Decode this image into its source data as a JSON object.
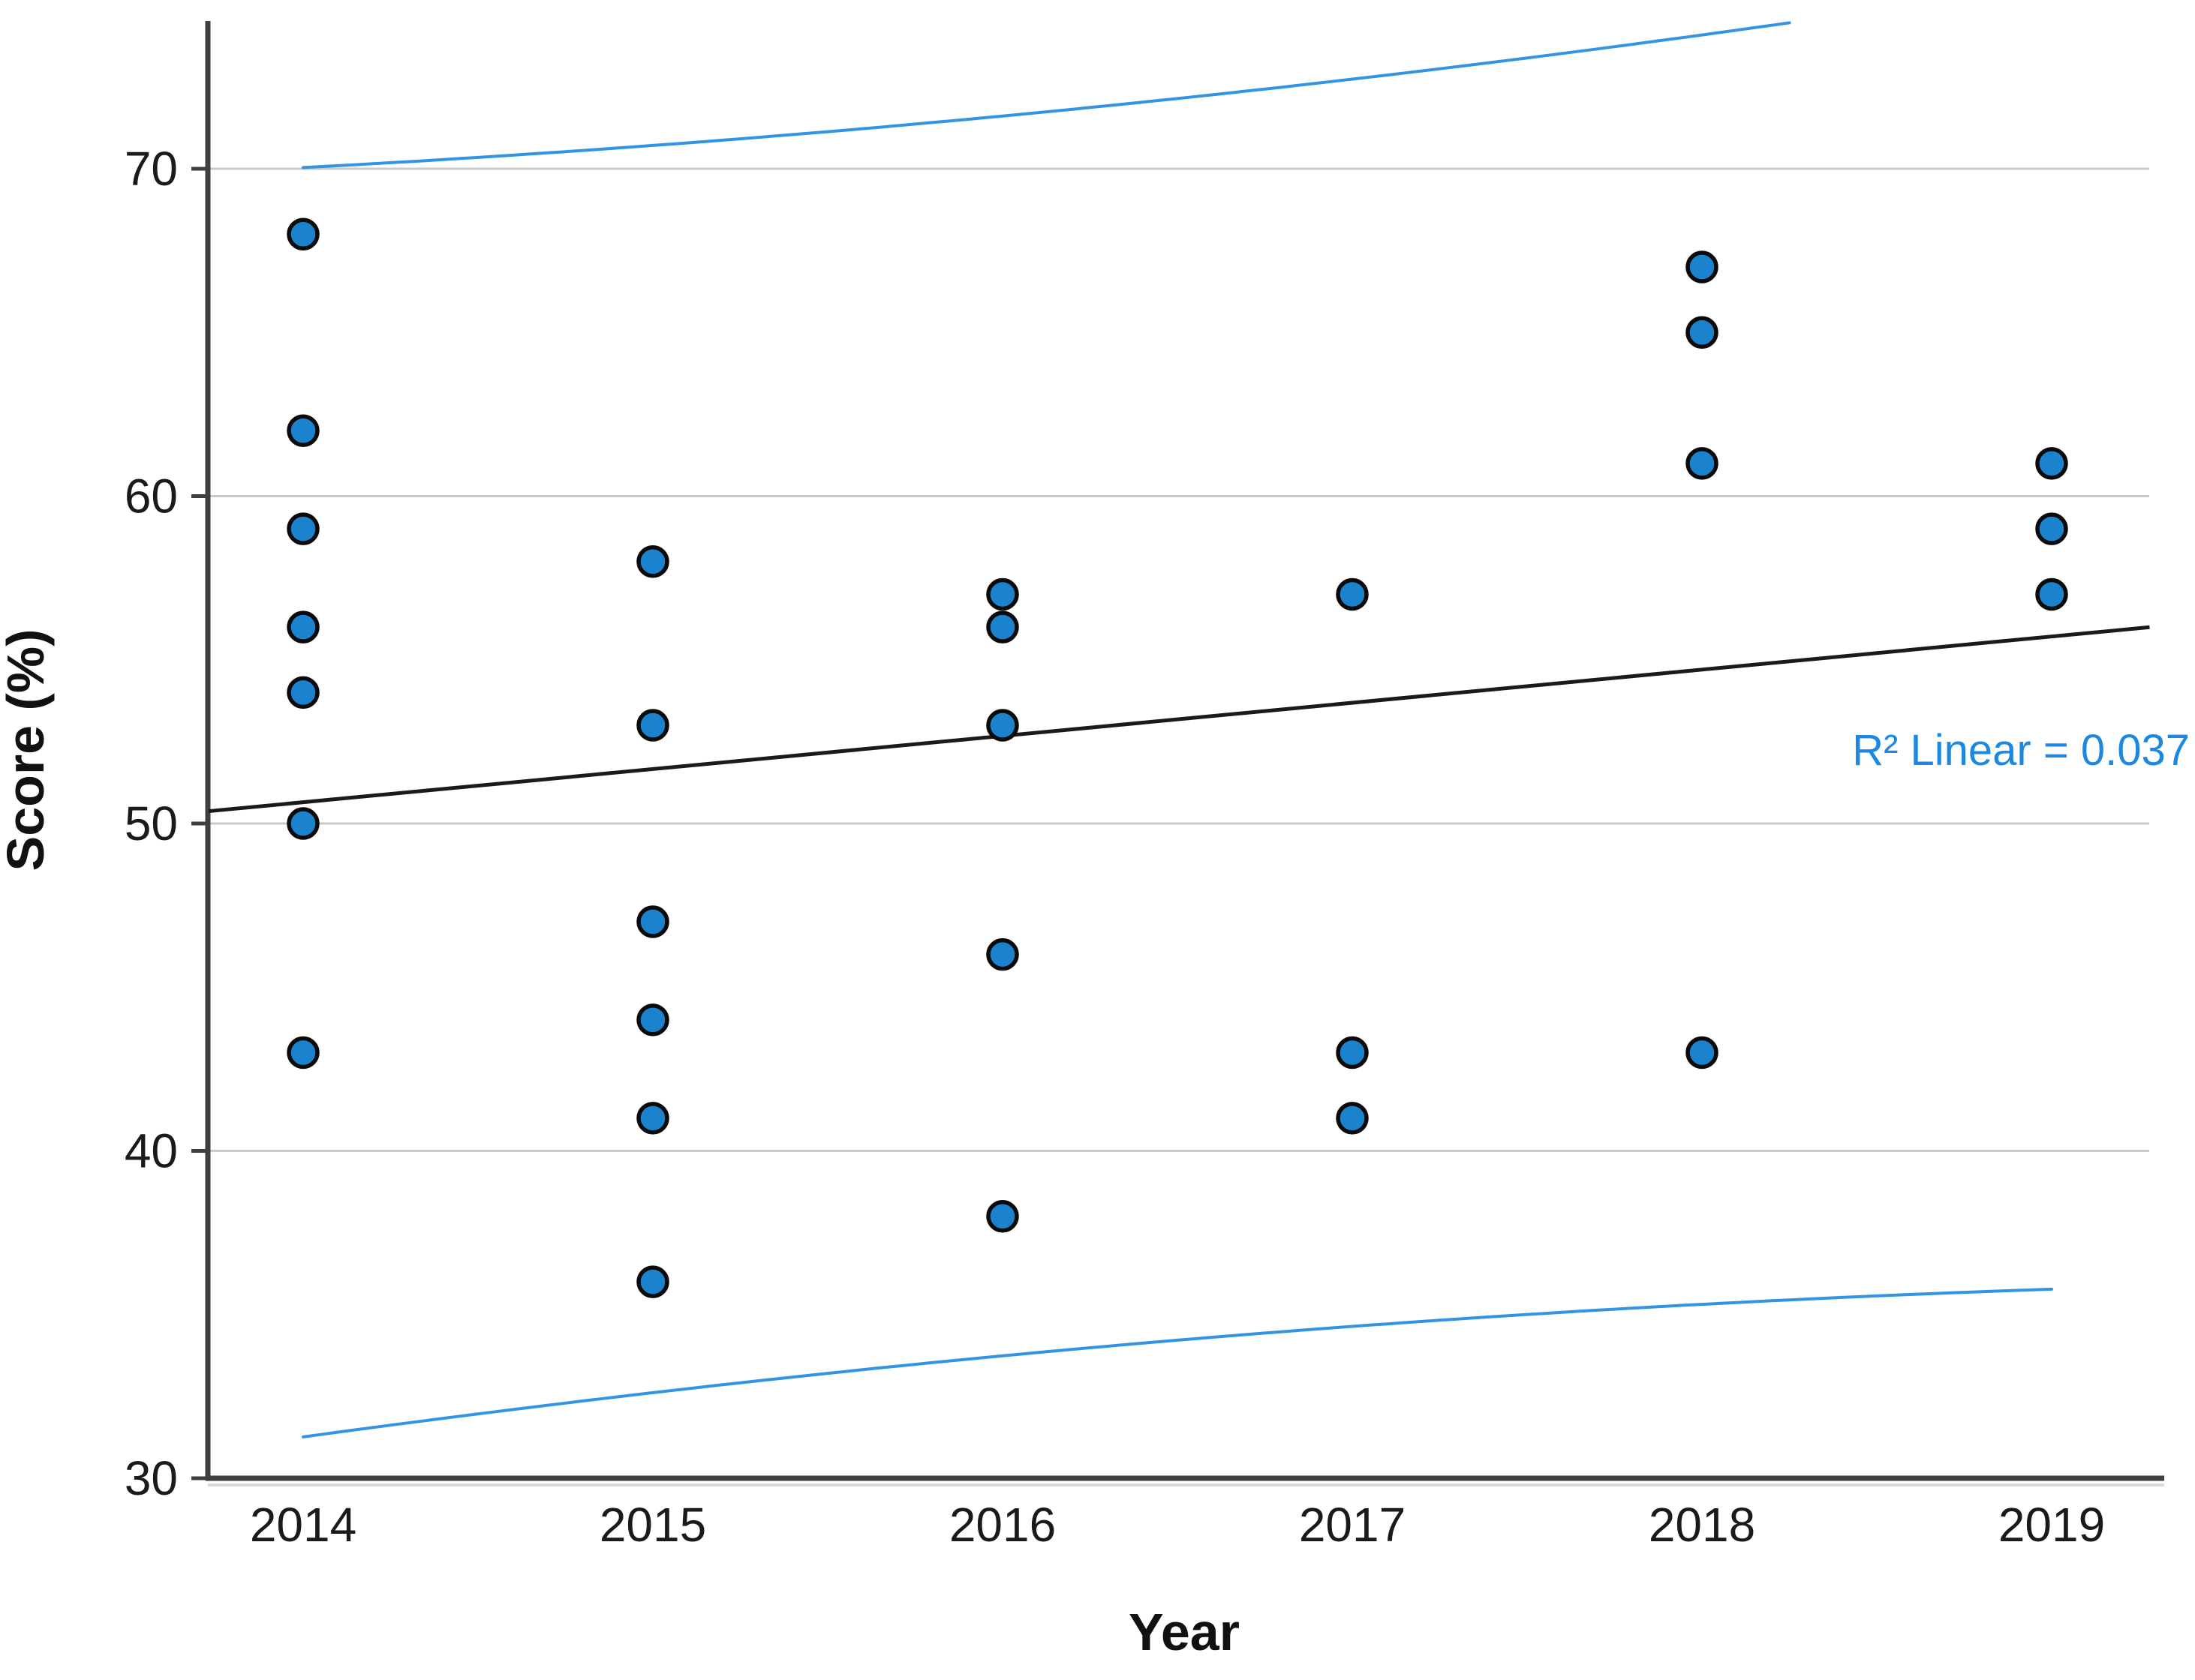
{
  "chart_data": {
    "type": "scatter",
    "title": "",
    "xlabel": "Year",
    "ylabel": "Score (%)",
    "annotation": {
      "text": "R² Linear = 0.037",
      "color": "#1E88E0",
      "position": "right-middle"
    },
    "x_tick_labels": [
      "2014",
      "2015",
      "2016",
      "2017",
      "2018",
      "2019"
    ],
    "y_tick_labels": [
      30,
      40,
      50,
      60,
      70
    ],
    "ylim": [
      30,
      74.5
    ],
    "xlim_years": [
      2013.73,
      2019.31
    ],
    "grid": "horizontal-only",
    "legend": "none",
    "points": [
      {
        "year": 2014,
        "scores": [
          68,
          62,
          59,
          56,
          54,
          50,
          43
        ]
      },
      {
        "year": 2015,
        "scores": [
          58,
          53,
          47,
          44,
          41,
          36
        ]
      },
      {
        "year": 2016,
        "scores": [
          57,
          56,
          53,
          46,
          38
        ]
      },
      {
        "year": 2017,
        "scores": [
          57,
          43,
          41
        ]
      },
      {
        "year": 2018,
        "scores": [
          67,
          65,
          61,
          43
        ]
      },
      {
        "year": 2019,
        "scores": [
          61,
          59,
          57
        ]
      }
    ],
    "fit_line": {
      "type": "linear",
      "slope_per_year": 1.0125,
      "intercept_at_2014": 50.65,
      "r_squared": 0.037,
      "x_start_year": 2013.73,
      "x_end_year": 2019.28
    },
    "prediction_band": {
      "level": 0.95,
      "t_times_s": 18.606,
      "inv_n": 0.035714,
      "mean_year_offset": 2,
      "sxx": 80,
      "year_start": 2014,
      "year_end": 2019,
      "upper_at_2014": 70.0,
      "lower_at_2014": 31.3,
      "lower_at_2019": 35.8,
      "upper_clipped_at_plot_top": true
    },
    "styles": {
      "point_fill": "#1B83CE",
      "point_stroke": "#0A0A0A",
      "band_color": "#3394E4",
      "fit_color": "#1A1A1A",
      "grid_color": "#C9C9C9",
      "axis_color": "#3F3F3F",
      "axis_shadow": "#D9D9D9",
      "text_color": "#1A1A1A",
      "background": "#FFFFFF"
    }
  }
}
